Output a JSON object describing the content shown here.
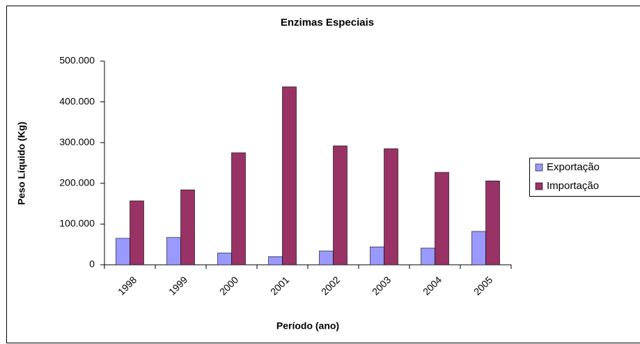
{
  "chart_data": {
    "type": "bar",
    "title": "Enzimas Especiais",
    "x_label": "Período (ano)",
    "y_label": "Peso Líquido (Kg)",
    "categories": [
      "1998",
      "1999",
      "2000",
      "2001",
      "2002",
      "2003",
      "2004",
      "2005"
    ],
    "series": [
      {
        "name": "Exportação",
        "color": "#9999ff",
        "values": [
          65000,
          67000,
          29000,
          20000,
          34000,
          44000,
          41000,
          82000
        ]
      },
      {
        "name": "Importação",
        "color": "#993366",
        "values": [
          157000,
          184000,
          275000,
          437000,
          292000,
          285000,
          227000,
          206000
        ]
      }
    ],
    "ylim": [
      0,
      500000
    ],
    "yticks": [
      0,
      {
        "value": 100000,
        "label": "100.000"
      },
      {
        "value": 200000,
        "label": "200.000"
      },
      {
        "value": 300000,
        "label": "300.000"
      },
      {
        "value": 400000,
        "label": "400.000"
      },
      {
        "value": 500000,
        "label": "500.000"
      }
    ],
    "grid": false,
    "legend": "right"
  }
}
